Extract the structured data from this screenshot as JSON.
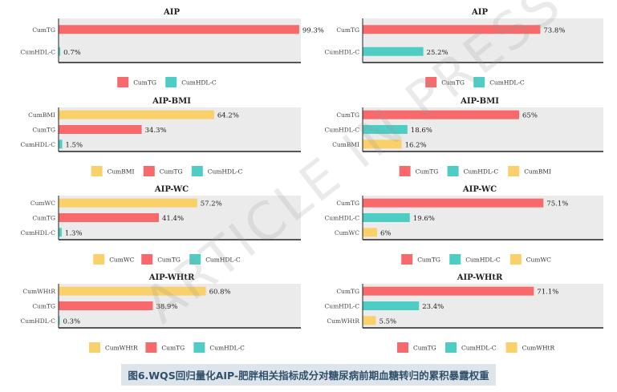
{
  "caption": "图6.WQS回归量化AIP-肥胖相关指标成分对糖尿病前期血糖转归的累积暴露权重",
  "watermark": "ARTICLE IN PRESS",
  "colors": {
    "CumTG": "#f8696b",
    "CumHDL-C": "#4ecdc4",
    "CumBMI": "#f9d06a",
    "CumWC": "#f9d06a",
    "CumWHtR": "#f9d06a",
    "panel": "#ebebeb"
  },
  "chart_data": [
    {
      "type": "bar",
      "orientation": "horizontal",
      "title": "AIP",
      "categories": [
        "CumHDL-C",
        "CumTG"
      ],
      "values": [
        0.7,
        99.3
      ],
      "labels": [
        "0.7%",
        "99.3%"
      ],
      "legend": [
        "CumTG",
        "CumHDL-C"
      ],
      "xlim": [
        0,
        100
      ]
    },
    {
      "type": "bar",
      "orientation": "horizontal",
      "title": "AIP",
      "categories": [
        "CumHDL-C",
        "CumTG"
      ],
      "values": [
        25.2,
        73.8
      ],
      "labels": [
        "25.2%",
        "73.8%"
      ],
      "legend": [
        "CumTG",
        "CumHDL-C"
      ],
      "xlim": [
        0,
        100
      ]
    },
    {
      "type": "bar",
      "orientation": "horizontal",
      "title": "AIP-BMI",
      "categories": [
        "CumHDL-C",
        "CumTG",
        "CumBMI"
      ],
      "values": [
        1.5,
        34.3,
        64.2
      ],
      "labels": [
        "1.5%",
        "34.3%",
        "64.2%"
      ],
      "legend": [
        "CumBMI",
        "CumTG",
        "CumHDL-C"
      ],
      "xlim": [
        0,
        100
      ]
    },
    {
      "type": "bar",
      "orientation": "horizontal",
      "title": "AIP-BMI",
      "categories": [
        "CumBMI",
        "CumHDL-C",
        "CumTG"
      ],
      "values": [
        16.2,
        18.6,
        65
      ],
      "labels": [
        "16.2%",
        "18.6%",
        "65%"
      ],
      "legend": [
        "CumTG",
        "CumHDL-C",
        "CumBMI"
      ],
      "xlim": [
        0,
        100
      ]
    },
    {
      "type": "bar",
      "orientation": "horizontal",
      "title": "AIP-WC",
      "categories": [
        "CumHDL-C",
        "CumTG",
        "CumWC"
      ],
      "values": [
        1.3,
        41.4,
        57.2
      ],
      "labels": [
        "1.3%",
        "41.4%",
        "57.2%"
      ],
      "legend": [
        "CumWC",
        "CumTG",
        "CumHDL-C"
      ],
      "xlim": [
        0,
        100
      ]
    },
    {
      "type": "bar",
      "orientation": "horizontal",
      "title": "AIP-WC",
      "categories": [
        "CumWC",
        "CumHDL-C",
        "CumTG"
      ],
      "values": [
        6,
        19.6,
        75.1
      ],
      "labels": [
        "6%",
        "19.6%",
        "75.1%"
      ],
      "legend": [
        "CumTG",
        "CumHDL-C",
        "CumWC"
      ],
      "xlim": [
        0,
        100
      ]
    },
    {
      "type": "bar",
      "orientation": "horizontal",
      "title": "AIP-WHtR",
      "categories": [
        "CumHDL-C",
        "CumTG",
        "CumWHtR"
      ],
      "values": [
        0.3,
        38.9,
        60.8
      ],
      "labels": [
        "0.3%",
        "38.9%",
        "60.8%"
      ],
      "legend": [
        "CumWHtR",
        "CumTG",
        "CumHDL-C"
      ],
      "xlim": [
        0,
        100
      ]
    },
    {
      "type": "bar",
      "orientation": "horizontal",
      "title": "AIP-WHtR",
      "categories": [
        "CumWHtR",
        "CumHDL-C",
        "CumTG"
      ],
      "values": [
        5.5,
        23.4,
        71.1
      ],
      "labels": [
        "5.5%",
        "23.4%",
        "71.1%"
      ],
      "legend": [
        "CumTG",
        "CumHDL-C",
        "CumWHtR"
      ],
      "xlim": [
        0,
        100
      ]
    }
  ]
}
